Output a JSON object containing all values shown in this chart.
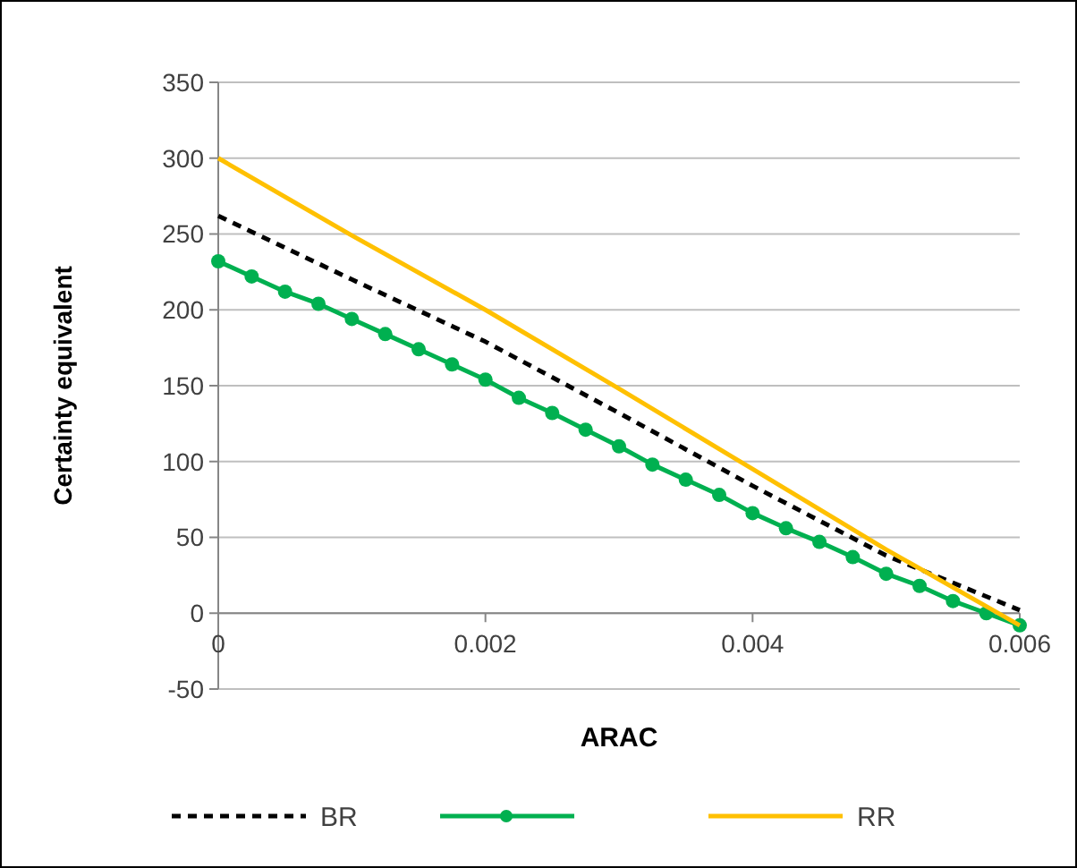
{
  "chart_data": {
    "type": "line",
    "xlabel": "ARAC",
    "ylabel": "Certainty equivalent",
    "xlim": [
      0,
      0.006
    ],
    "xticks": [
      0,
      0.002,
      0.004,
      0.006
    ],
    "ylim": [
      -50,
      350
    ],
    "yticks": [
      -50,
      0,
      50,
      100,
      150,
      200,
      250,
      300,
      350
    ],
    "grid": "y",
    "legend": "bottom",
    "series": [
      {
        "name": "BR",
        "color": "#000000",
        "line_style": "dashed",
        "marker": "none",
        "x": [
          0,
          0.001,
          0.002,
          0.003,
          0.004,
          0.005,
          0.006
        ],
        "values": [
          262,
          220,
          179,
          132,
          84,
          38,
          2
        ]
      },
      {
        "color": "#00b050",
        "line_style": "solid",
        "marker": "circle",
        "x": [
          0,
          0.00025,
          0.0005,
          0.00075,
          0.001,
          0.00125,
          0.0015,
          0.00175,
          0.002,
          0.00225,
          0.0025,
          0.00275,
          0.003,
          0.00325,
          0.0035,
          0.00375,
          0.004,
          0.00425,
          0.0045,
          0.00475,
          0.005,
          0.00525,
          0.0055,
          0.00575,
          0.006
        ],
        "values": [
          232,
          222,
          212,
          204,
          194,
          184,
          174,
          164,
          154,
          142,
          132,
          121,
          110,
          98,
          88,
          78,
          66,
          56,
          47,
          37,
          26,
          18,
          8,
          0,
          -8
        ]
      },
      {
        "name": "RR",
        "color": "#ffc000",
        "line_style": "solid",
        "marker": "none",
        "x": [
          0,
          0.001,
          0.002,
          0.003,
          0.004,
          0.005,
          0.006
        ],
        "values": [
          300,
          249,
          200,
          148,
          95,
          42,
          -8
        ]
      }
    ]
  }
}
